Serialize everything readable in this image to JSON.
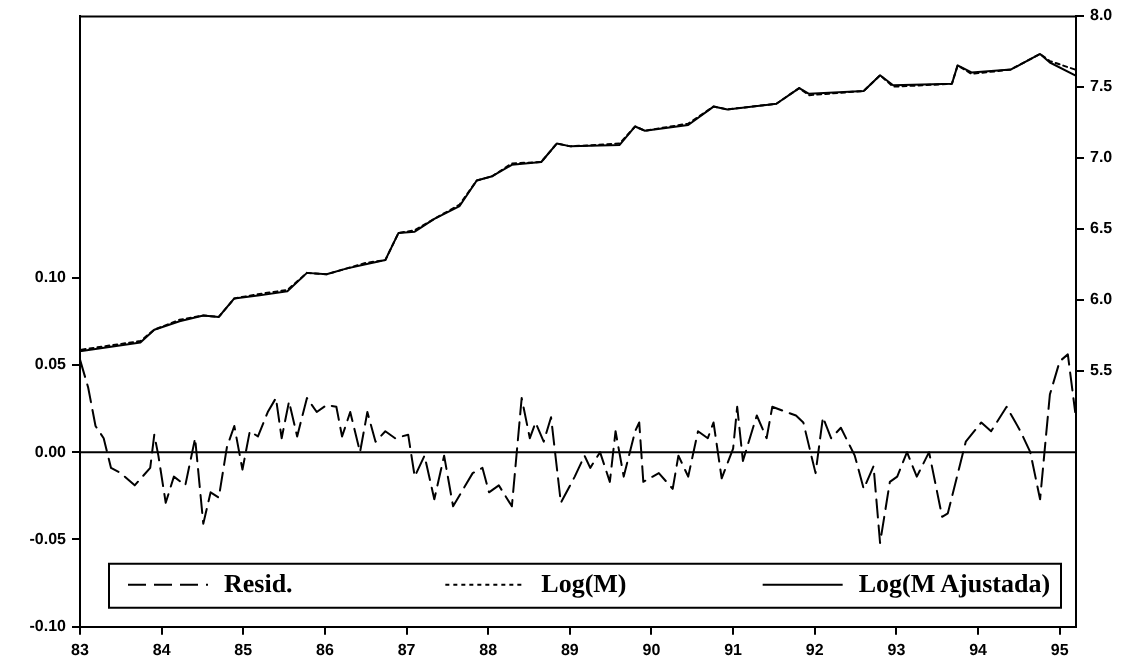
{
  "chart_data": {
    "type": "line",
    "series": [
      {
        "name": "Resid.",
        "color": "#000000",
        "line_style": "dashed",
        "x": [
          83.0,
          83.1,
          83.19,
          83.29,
          83.38,
          83.5,
          83.67,
          83.86,
          83.91,
          83.96,
          84.05,
          84.15,
          84.29,
          84.41,
          84.51,
          84.6,
          84.7,
          84.8,
          84.89,
          84.99,
          85.08,
          85.18,
          85.3,
          85.4,
          85.47,
          85.56,
          85.66,
          85.78,
          85.9,
          86.02,
          86.14,
          86.21,
          86.31,
          86.43,
          86.52,
          86.62,
          86.74,
          86.86,
          87.02,
          87.1,
          87.22,
          87.34,
          87.46,
          87.57,
          87.81,
          87.93,
          88.01,
          88.13,
          88.29,
          88.41,
          88.51,
          88.58,
          88.68,
          88.77,
          88.89,
          89.06,
          89.18,
          89.25,
          89.37,
          89.49,
          89.56,
          89.66,
          89.8,
          89.85,
          89.9,
          90.09,
          90.26,
          90.33,
          90.45,
          90.57,
          90.69,
          90.76,
          90.86,
          91.0,
          91.05,
          91.12,
          91.29,
          91.41,
          91.48,
          91.65,
          91.77,
          91.86,
          92.01,
          92.1,
          92.2,
          92.32,
          92.49,
          92.6,
          92.72,
          92.8,
          92.92,
          93.01,
          93.13,
          93.25,
          93.4,
          93.56,
          93.63,
          93.85,
          94.04,
          94.16,
          94.35,
          94.52,
          94.64,
          94.76,
          94.88,
          95.0,
          95.1,
          95.19
        ],
        "values": [
          0.053,
          0.037,
          0.015,
          0.008,
          -0.009,
          -0.012,
          -0.019,
          -0.009,
          0.01,
          -0.002,
          -0.029,
          -0.014,
          -0.019,
          0.008,
          -0.041,
          -0.023,
          -0.026,
          0.003,
          0.015,
          -0.01,
          0.012,
          0.009,
          0.023,
          0.031,
          0.008,
          0.029,
          0.009,
          0.031,
          0.023,
          0.027,
          0.026,
          0.009,
          0.023,
          0.0,
          0.023,
          0.006,
          0.012,
          0.008,
          0.01,
          -0.014,
          -0.002,
          -0.027,
          -0.002,
          -0.031,
          -0.012,
          -0.009,
          -0.023,
          -0.019,
          -0.031,
          0.031,
          0.008,
          0.017,
          0.006,
          0.02,
          -0.029,
          -0.014,
          -0.002,
          -0.009,
          0.0,
          -0.017,
          0.012,
          -0.014,
          0.012,
          0.017,
          -0.017,
          -0.012,
          -0.021,
          -0.002,
          -0.014,
          0.012,
          0.008,
          0.017,
          -0.015,
          0.002,
          0.026,
          -0.005,
          0.021,
          0.008,
          0.026,
          0.023,
          0.021,
          0.017,
          -0.012,
          0.02,
          0.008,
          0.014,
          -0.002,
          -0.021,
          -0.008,
          -0.052,
          -0.017,
          -0.014,
          0.0,
          -0.014,
          0.0,
          -0.037,
          -0.035,
          0.006,
          0.017,
          0.012,
          0.026,
          0.012,
          0.0,
          -0.027,
          0.033,
          0.052,
          0.056,
          0.023
        ]
      },
      {
        "name": "Log(M)",
        "color": "#000000",
        "line_style": "dotted",
        "axis": "y2",
        "x": [
          83.02,
          83.74,
          83.91,
          84.22,
          84.51,
          84.7,
          84.89,
          85.18,
          85.54,
          85.78,
          86.02,
          86.26,
          86.5,
          86.74,
          86.9,
          87.1,
          87.34,
          87.65,
          87.86,
          88.05,
          88.29,
          88.65,
          88.84,
          89.01,
          89.61,
          89.8,
          89.92,
          90.45,
          90.76,
          90.93,
          91.53,
          91.81,
          91.93,
          92.6,
          92.8,
          92.96,
          93.68,
          93.75,
          93.92,
          94.4,
          94.76,
          94.88,
          95.19
        ],
        "values": [
          5.65,
          5.71,
          5.79,
          5.86,
          5.89,
          5.88,
          6.01,
          6.04,
          6.07,
          6.19,
          6.18,
          6.22,
          6.26,
          6.28,
          6.47,
          6.49,
          6.57,
          6.67,
          6.84,
          6.87,
          6.96,
          6.97,
          7.1,
          7.08,
          7.1,
          7.22,
          7.19,
          7.24,
          7.36,
          7.34,
          7.38,
          7.49,
          7.44,
          7.47,
          7.58,
          7.5,
          7.52,
          7.65,
          7.59,
          7.62,
          7.73,
          7.68,
          7.62
        ]
      },
      {
        "name": "Log(M Ajustada)",
        "color": "#000000",
        "line_style": "solid",
        "axis": "y2",
        "x": [
          83.02,
          83.74,
          83.91,
          84.22,
          84.51,
          84.7,
          84.89,
          85.18,
          85.54,
          85.78,
          86.02,
          86.26,
          86.5,
          86.74,
          86.9,
          87.1,
          87.34,
          87.65,
          87.86,
          88.05,
          88.29,
          88.65,
          88.84,
          89.01,
          89.61,
          89.8,
          89.92,
          90.45,
          90.76,
          90.93,
          91.53,
          91.81,
          91.93,
          92.6,
          92.8,
          92.96,
          93.68,
          93.75,
          93.92,
          94.4,
          94.76,
          94.88,
          95.19
        ],
        "values": [
          5.64,
          5.7,
          5.79,
          5.85,
          5.89,
          5.88,
          6.01,
          6.03,
          6.06,
          6.19,
          6.18,
          6.22,
          6.25,
          6.28,
          6.47,
          6.48,
          6.57,
          6.66,
          6.84,
          6.87,
          6.95,
          6.97,
          7.1,
          7.08,
          7.09,
          7.22,
          7.19,
          7.23,
          7.36,
          7.34,
          7.38,
          7.49,
          7.45,
          7.47,
          7.58,
          7.51,
          7.52,
          7.65,
          7.6,
          7.62,
          7.73,
          7.67,
          7.58
        ]
      }
    ],
    "xlim": [
      83,
      95.2
    ],
    "xticks": [
      83,
      84,
      85,
      86,
      87,
      88,
      89,
      90,
      91,
      92,
      93,
      94,
      95
    ],
    "ylim": [
      -0.1,
      0.25
    ],
    "yticks": [
      {
        "value": -0.1,
        "label": "-0.10"
      },
      {
        "value": -0.05,
        "label": "-0.05"
      },
      {
        "value": 0,
        "label": "0.00"
      },
      {
        "value": 0.05,
        "label": "0.05"
      },
      {
        "value": 0.1,
        "label": "0.10"
      }
    ],
    "y2lim": [
      3.7,
      8.0
    ],
    "y2ticks": [
      {
        "value": 5.5,
        "label": "5.5"
      },
      {
        "value": 6.0,
        "label": "6.0"
      },
      {
        "value": 6.5,
        "label": "6.5"
      },
      {
        "value": 7.0,
        "label": "7.0"
      },
      {
        "value": 7.5,
        "label": "7.5"
      },
      {
        "value": 8.0,
        "label": "8.0"
      }
    ],
    "ref_lines": [
      {
        "axis": "y",
        "value": 0,
        "color": "#000000"
      }
    ],
    "legend": "bottom"
  }
}
